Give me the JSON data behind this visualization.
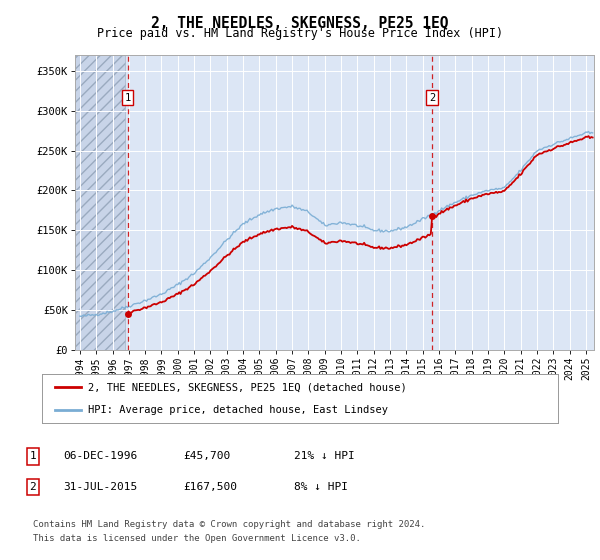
{
  "title": "2, THE NEEDLES, SKEGNESS, PE25 1EQ",
  "subtitle": "Price paid vs. HM Land Registry's House Price Index (HPI)",
  "ylabel_ticks": [
    "£0",
    "£50K",
    "£100K",
    "£150K",
    "£200K",
    "£250K",
    "£300K",
    "£350K"
  ],
  "ytick_values": [
    0,
    50000,
    100000,
    150000,
    200000,
    250000,
    300000,
    350000
  ],
  "ylim": [
    0,
    370000
  ],
  "xlim_start": 1993.7,
  "xlim_end": 2025.5,
  "hpi_color": "#7aadd4",
  "price_color": "#cc0000",
  "background_plot": "#dce6f5",
  "background_hatch": "#c8d4e8",
  "hatch_end_year": 1996.75,
  "transaction1_year": 1996.92,
  "transaction1_price": 45700,
  "transaction2_year": 2015.58,
  "transaction2_price": 167500,
  "legend_line1": "2, THE NEEDLES, SKEGNESS, PE25 1EQ (detached house)",
  "legend_line2": "HPI: Average price, detached house, East Lindsey",
  "transaction1_date": "06-DEC-1996",
  "transaction1_amount": "£45,700",
  "transaction1_pct": "21% ↓ HPI",
  "transaction2_date": "31-JUL-2015",
  "transaction2_amount": "£167,500",
  "transaction2_pct": "8% ↓ HPI",
  "footnote1": "Contains HM Land Registry data © Crown copyright and database right 2024.",
  "footnote2": "This data is licensed under the Open Government Licence v3.0.",
  "xtick_years": [
    1994,
    1995,
    1996,
    1997,
    1998,
    1999,
    2000,
    2001,
    2002,
    2003,
    2004,
    2005,
    2006,
    2007,
    2008,
    2009,
    2010,
    2011,
    2012,
    2013,
    2014,
    2015,
    2016,
    2017,
    2018,
    2019,
    2020,
    2021,
    2022,
    2023,
    2024,
    2025
  ]
}
